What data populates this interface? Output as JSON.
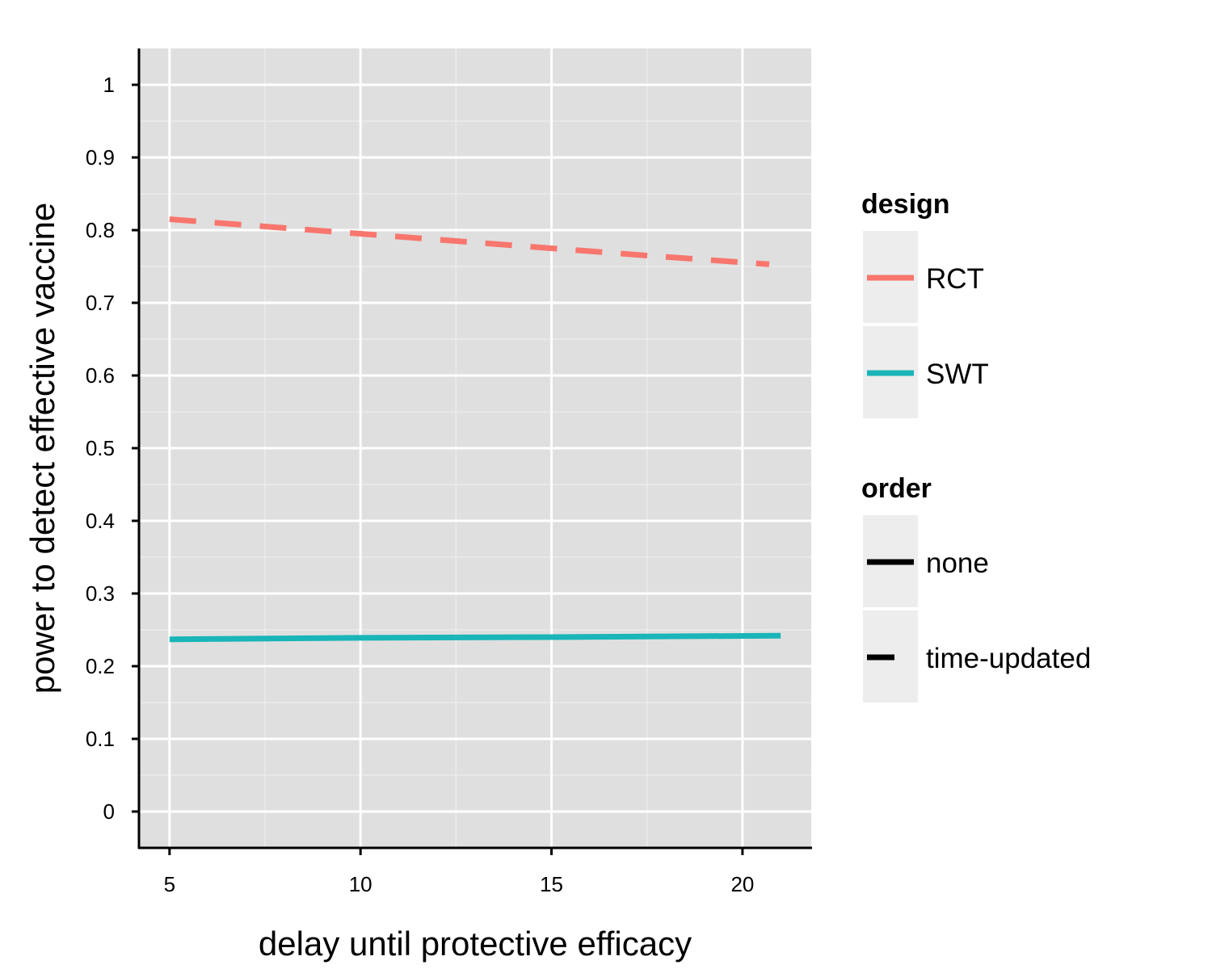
{
  "chart_data": {
    "type": "line",
    "xlabel": "delay until protective efficacy",
    "ylabel": "power to detect effective vaccine",
    "xlim": [
      4.2,
      21.8
    ],
    "ylim": [
      -0.05,
      1.05
    ],
    "x_ticks": [
      5,
      10,
      15,
      20
    ],
    "y_ticks": [
      0,
      0.1,
      0.2,
      0.3,
      0.4,
      0.5,
      0.6,
      0.7,
      0.8,
      0.9,
      1
    ],
    "y_tick_labels": [
      "0",
      "0.1",
      "0.2",
      "0.3",
      "0.4",
      "0.5",
      "0.6",
      "0.7",
      "0.8",
      "0.9",
      "1"
    ],
    "grid": true,
    "panel_background": "#DFDFDF",
    "grid_color": "#FFFFFF",
    "series": [
      {
        "name": "RCT",
        "design": "RCT",
        "order": "time-updated",
        "color": "#F8766D",
        "dash": "dashed",
        "x": [
          5,
          7.5,
          10,
          12.5,
          15,
          17.5,
          20.7
        ],
        "y": [
          0.815,
          0.805,
          0.795,
          0.785,
          0.775,
          0.765,
          0.753
        ]
      },
      {
        "name": "SWT",
        "design": "SWT",
        "order": "none",
        "color": "#19B5B8",
        "dash": "solid",
        "x": [
          5,
          10,
          15,
          21
        ],
        "y": [
          0.237,
          0.239,
          0.24,
          0.242
        ]
      }
    ],
    "legends": [
      {
        "title": "design",
        "items": [
          {
            "label": "RCT",
            "color": "#F8766D",
            "dash": "solid"
          },
          {
            "label": "SWT",
            "color": "#19B5B8",
            "dash": "solid"
          }
        ]
      },
      {
        "title": "order",
        "items": [
          {
            "label": "none",
            "color": "#000000",
            "dash": "solid"
          },
          {
            "label": "time-updated",
            "color": "#000000",
            "dash": "dashed"
          }
        ]
      }
    ],
    "legend_position": "right"
  }
}
